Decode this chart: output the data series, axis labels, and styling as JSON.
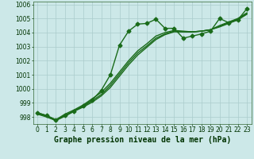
{
  "title": "Graphe pression niveau de la mer (hPa)",
  "background_color": "#cce8e8",
  "grid_color": "#aacccc",
  "line_color": "#1a6b1a",
  "xlim": [
    -0.5,
    23.5
  ],
  "ylim": [
    997.5,
    1006.2
  ],
  "yticks": [
    998,
    999,
    1000,
    1001,
    1002,
    1003,
    1004,
    1005,
    1006
  ],
  "xticks": [
    0,
    1,
    2,
    3,
    4,
    5,
    6,
    7,
    8,
    9,
    10,
    11,
    12,
    13,
    14,
    15,
    16,
    17,
    18,
    19,
    20,
    21,
    22,
    23
  ],
  "series1_x": [
    0,
    1,
    2,
    3,
    4,
    5,
    6,
    7,
    8,
    9,
    10,
    11,
    12,
    13,
    14,
    15,
    16,
    17,
    18,
    19,
    20,
    21,
    22,
    23
  ],
  "series1_y": [
    998.3,
    998.1,
    997.8,
    998.1,
    998.4,
    998.8,
    999.2,
    999.9,
    1001.0,
    1003.1,
    1004.1,
    1004.6,
    1004.65,
    1004.95,
    1004.3,
    1004.3,
    1003.6,
    1003.75,
    1003.9,
    1004.1,
    1005.0,
    1004.7,
    1004.9,
    1005.7
  ],
  "series2_x": [
    0,
    1,
    2,
    3,
    4,
    5,
    6,
    7,
    8,
    9,
    10,
    11,
    12,
    13,
    14,
    15,
    16,
    17,
    18,
    19,
    20,
    21,
    22,
    23
  ],
  "series2_y": [
    998.3,
    998.1,
    997.8,
    998.2,
    998.5,
    998.85,
    999.3,
    999.75,
    1000.4,
    1001.2,
    1002.0,
    1002.7,
    1003.2,
    1003.75,
    1004.0,
    1004.15,
    1004.1,
    1004.05,
    1004.1,
    1004.2,
    1004.5,
    1004.75,
    1005.0,
    1005.4
  ],
  "series3_x": [
    0,
    1,
    2,
    3,
    4,
    5,
    6,
    7,
    8,
    9,
    10,
    11,
    12,
    13,
    14,
    15,
    16,
    17,
    18,
    19,
    20,
    21,
    22,
    23
  ],
  "series3_y": [
    998.25,
    998.05,
    997.75,
    998.1,
    998.45,
    998.75,
    999.15,
    999.6,
    1000.25,
    1001.05,
    1001.85,
    1002.55,
    1003.05,
    1003.6,
    1003.9,
    1004.1,
    1004.05,
    1004.05,
    1004.1,
    1004.2,
    1004.45,
    1004.7,
    1004.95,
    1005.35
  ],
  "series4_x": [
    0,
    1,
    2,
    3,
    4,
    5,
    6,
    7,
    8,
    9,
    10,
    11,
    12,
    13,
    14,
    15,
    16,
    17,
    18,
    19,
    20,
    21,
    22,
    23
  ],
  "series4_y": [
    998.2,
    998.0,
    997.75,
    998.05,
    998.4,
    998.7,
    999.05,
    999.5,
    1000.1,
    1000.9,
    1001.7,
    1002.4,
    1002.95,
    1003.5,
    1003.85,
    1004.05,
    1004.05,
    1004.05,
    1004.1,
    1004.2,
    1004.4,
    1004.65,
    1004.9,
    1005.3
  ],
  "marker_style": "D",
  "marker_size": 2.5,
  "line_width": 1.0,
  "title_fontsize": 7,
  "tick_fontsize": 5.5
}
